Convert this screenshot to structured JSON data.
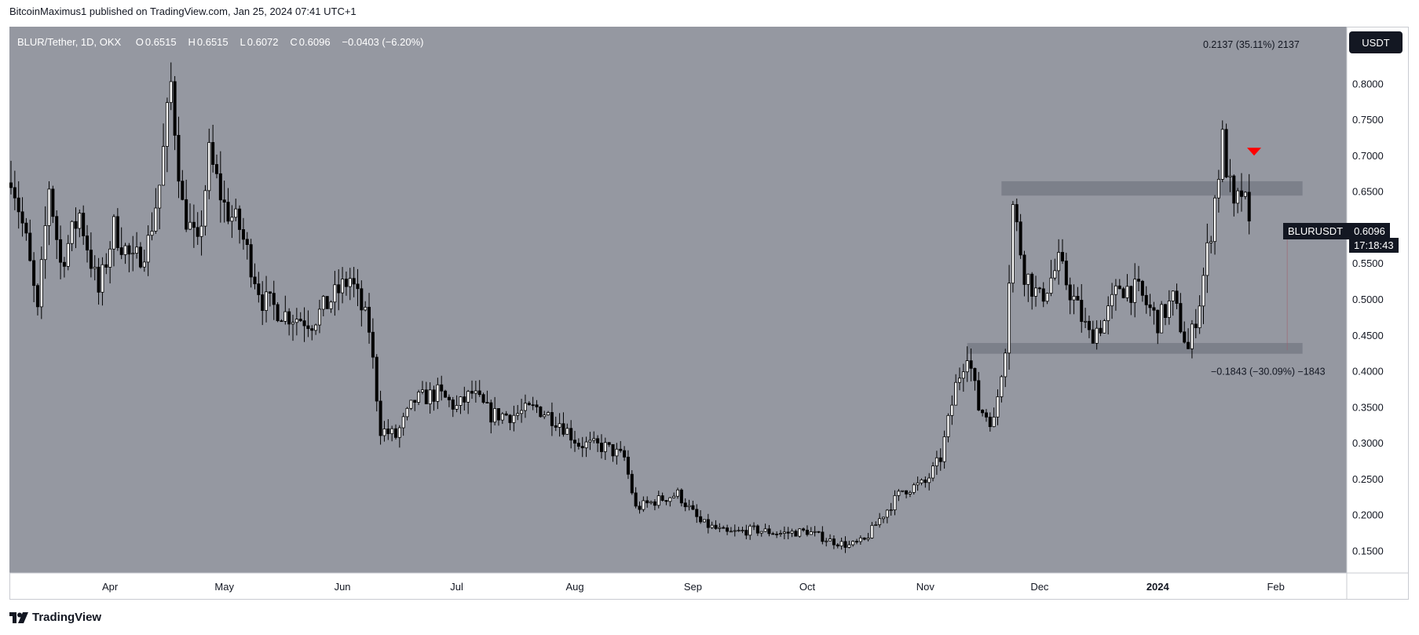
{
  "header": {
    "published_text": "BitcoinMaximus1 published on TradingView.com, Jan 25, 2024 07:41 UTC+1"
  },
  "legend": {
    "symbol": "BLUR/Tether, 1D, OKX",
    "open_label": "O",
    "open": "0.6515",
    "high_label": "H",
    "high": "0.6515",
    "low_label": "L",
    "low": "0.6072",
    "close_label": "C",
    "close": "0.6096",
    "change": "−0.0403 (−6.20%)"
  },
  "price_scale": {
    "currency": "USDT",
    "last_symbol": "BLURUSDT",
    "last_price": "0.6096",
    "countdown": "17:18:43"
  },
  "footer": {
    "brand": "TradingView"
  },
  "colors": {
    "background": "#9598a1",
    "candle": "#000000",
    "zone": "#787b86",
    "marker": "#ff0000",
    "axis_text": "#131722"
  },
  "chart_data": {
    "type": "candlestick",
    "title": "BLUR/Tether, 1D, OKX",
    "ylim": [
      0.12,
      0.88
    ],
    "y_ticks": [
      0.85,
      0.8,
      0.75,
      0.7,
      0.65,
      0.6,
      0.55,
      0.5,
      0.45,
      0.4,
      0.35,
      0.3,
      0.25,
      0.2,
      0.15
    ],
    "x_ticks": [
      {
        "label": "Apr",
        "date": "2023-04-01"
      },
      {
        "label": "May",
        "date": "2023-05-01"
      },
      {
        "label": "Jun",
        "date": "2023-06-01"
      },
      {
        "label": "Jul",
        "date": "2023-07-01"
      },
      {
        "label": "Aug",
        "date": "2023-08-01"
      },
      {
        "label": "Sep",
        "date": "2023-09-01"
      },
      {
        "label": "Oct",
        "date": "2023-10-01"
      },
      {
        "label": "Nov",
        "date": "2023-11-01"
      },
      {
        "label": "Dec",
        "date": "2023-12-01"
      },
      {
        "label": "2024",
        "date": "2024-01-01"
      },
      {
        "label": "Feb",
        "date": "2024-02-01"
      }
    ],
    "x_range": [
      "2023-03-06",
      "2024-02-19"
    ],
    "path": [
      {
        "date": "2023-03-06",
        "close": 0.68
      },
      {
        "date": "2023-03-10",
        "close": 0.58
      },
      {
        "date": "2023-03-13",
        "close": 0.48
      },
      {
        "date": "2023-03-16",
        "close": 0.66
      },
      {
        "date": "2023-03-19",
        "close": 0.55
      },
      {
        "date": "2023-03-24",
        "close": 0.62
      },
      {
        "date": "2023-03-29",
        "close": 0.51
      },
      {
        "date": "2023-04-02",
        "close": 0.6
      },
      {
        "date": "2023-04-07",
        "close": 0.55
      },
      {
        "date": "2023-04-11",
        "close": 0.58
      },
      {
        "date": "2023-04-14",
        "close": 0.66
      },
      {
        "date": "2023-04-17",
        "close": 0.8
      },
      {
        "date": "2023-04-20",
        "close": 0.63
      },
      {
        "date": "2023-04-24",
        "close": 0.57
      },
      {
        "date": "2023-04-27",
        "close": 0.7
      },
      {
        "date": "2023-05-01",
        "close": 0.63
      },
      {
        "date": "2023-05-05",
        "close": 0.6
      },
      {
        "date": "2023-05-11",
        "close": 0.5
      },
      {
        "date": "2023-05-17",
        "close": 0.48
      },
      {
        "date": "2023-05-24",
        "close": 0.47
      },
      {
        "date": "2023-05-29",
        "close": 0.5
      },
      {
        "date": "2023-06-03",
        "close": 0.53
      },
      {
        "date": "2023-06-08",
        "close": 0.46
      },
      {
        "date": "2023-06-11",
        "close": 0.32
      },
      {
        "date": "2023-06-15",
        "close": 0.31
      },
      {
        "date": "2023-06-20",
        "close": 0.36
      },
      {
        "date": "2023-06-26",
        "close": 0.37
      },
      {
        "date": "2023-07-01",
        "close": 0.35
      },
      {
        "date": "2023-07-05",
        "close": 0.37
      },
      {
        "date": "2023-07-10",
        "close": 0.34
      },
      {
        "date": "2023-07-16",
        "close": 0.34
      },
      {
        "date": "2023-07-22",
        "close": 0.35
      },
      {
        "date": "2023-07-28",
        "close": 0.33
      },
      {
        "date": "2023-08-02",
        "close": 0.3
      },
      {
        "date": "2023-08-09",
        "close": 0.295
      },
      {
        "date": "2023-08-14",
        "close": 0.28
      },
      {
        "date": "2023-08-17",
        "close": 0.21
      },
      {
        "date": "2023-08-22",
        "close": 0.22
      },
      {
        "date": "2023-08-28",
        "close": 0.23
      },
      {
        "date": "2023-09-03",
        "close": 0.19
      },
      {
        "date": "2023-09-10",
        "close": 0.175
      },
      {
        "date": "2023-09-17",
        "close": 0.18
      },
      {
        "date": "2023-09-24",
        "close": 0.175
      },
      {
        "date": "2023-10-01",
        "close": 0.178
      },
      {
        "date": "2023-10-07",
        "close": 0.165
      },
      {
        "date": "2023-10-12",
        "close": 0.158
      },
      {
        "date": "2023-10-16",
        "close": 0.165
      },
      {
        "date": "2023-10-20",
        "close": 0.195
      },
      {
        "date": "2023-10-26",
        "close": 0.235
      },
      {
        "date": "2023-11-01",
        "close": 0.245
      },
      {
        "date": "2023-11-05",
        "close": 0.28
      },
      {
        "date": "2023-11-09",
        "close": 0.38
      },
      {
        "date": "2023-11-12",
        "close": 0.43
      },
      {
        "date": "2023-11-15",
        "close": 0.35
      },
      {
        "date": "2023-11-19",
        "close": 0.33
      },
      {
        "date": "2023-11-22",
        "close": 0.44
      },
      {
        "date": "2023-11-24",
        "close": 0.63
      },
      {
        "date": "2023-11-27",
        "close": 0.54
      },
      {
        "date": "2023-12-01",
        "close": 0.5
      },
      {
        "date": "2023-12-06",
        "close": 0.55
      },
      {
        "date": "2023-12-10",
        "close": 0.5
      },
      {
        "date": "2023-12-14",
        "close": 0.45
      },
      {
        "date": "2023-12-18",
        "close": 0.47
      },
      {
        "date": "2023-12-22",
        "close": 0.52
      },
      {
        "date": "2023-12-27",
        "close": 0.51
      },
      {
        "date": "2024-01-01",
        "close": 0.47
      },
      {
        "date": "2024-01-05",
        "close": 0.5
      },
      {
        "date": "2024-01-09",
        "close": 0.43
      },
      {
        "date": "2024-01-12",
        "close": 0.5
      },
      {
        "date": "2024-01-15",
        "close": 0.6
      },
      {
        "date": "2024-01-18",
        "close": 0.72
      },
      {
        "date": "2024-01-21",
        "close": 0.62
      },
      {
        "date": "2024-01-23",
        "close": 0.65
      },
      {
        "date": "2024-01-25",
        "close": 0.6096
      }
    ],
    "zones": [
      {
        "name": "resistance-zone",
        "from_date": "2023-11-21",
        "to_date": "2024-02-08",
        "low": 0.645,
        "high": 0.665
      },
      {
        "name": "support-zone",
        "from_date": "2023-11-12",
        "to_date": "2024-02-08",
        "low": 0.425,
        "high": 0.44
      }
    ],
    "range_measures": [
      {
        "text": "0.2137 (35.11%) 2137",
        "date": "2024-02-03",
        "price": 0.855
      },
      {
        "text": "−0.1843 (−30.09%) −1843",
        "date": "2024-02-04",
        "price": 0.4
      }
    ],
    "markers": [
      {
        "type": "arrow-down",
        "date": "2024-01-23",
        "price": 0.705
      }
    ]
  }
}
